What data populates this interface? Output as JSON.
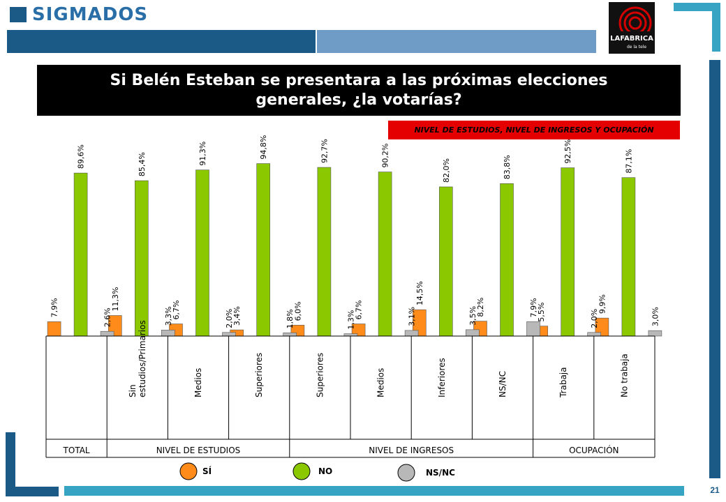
{
  "header": {
    "brand": "SIGMADOS",
    "logo_text": "LAFABRICA de la tele"
  },
  "question": "Si Belén Esteban se presentara a las próximas elecciones generales, ¿la votarías?",
  "subtitle": "Nivel de estudios, nivel de ingresos y ocupación",
  "page_number": "21",
  "colors": {
    "si": "#ff8c1a",
    "no": "#8cc800",
    "nsnc": "#b8b8b8",
    "navy": "#1b5a86",
    "teal": "#37a4c4",
    "light_blue": "#6e9cc6",
    "red": "#e40000"
  },
  "legend": {
    "si": "SÍ",
    "no": "NO",
    "nsnc": "NS/NC"
  },
  "chart_data": {
    "type": "bar",
    "categories": [
      "",
      "Sin estudios/Primarios",
      "Medios",
      "Superiores",
      "Superiores",
      "Medios",
      "Inferiores",
      "NS/NC",
      "Trabaja",
      "No trabaja"
    ],
    "category_lines": [
      [
        ""
      ],
      [
        "Sin",
        "estudios/Primarios"
      ],
      [
        "Medios"
      ],
      [
        "Superiores"
      ],
      [
        "Superiores"
      ],
      [
        "Medios"
      ],
      [
        "Inferiores"
      ],
      [
        "NS/NC"
      ],
      [
        "Trabaja"
      ],
      [
        "No trabaja"
      ]
    ],
    "groups": [
      {
        "label": "TOTAL",
        "members": [
          0
        ]
      },
      {
        "label": "NIVEL DE ESTUDIOS",
        "members": [
          1,
          2,
          3
        ]
      },
      {
        "label": "NIVEL DE INGRESOS",
        "members": [
          4,
          5,
          6,
          7
        ]
      },
      {
        "label": "OCUPACIÓN",
        "members": [
          8,
          9
        ]
      }
    ],
    "series": [
      {
        "name": "SÍ",
        "values": [
          7.9,
          11.3,
          6.7,
          3.4,
          6.0,
          6.7,
          14.5,
          8.2,
          5.5,
          9.9
        ],
        "labels": [
          "7,9%",
          "11,3%",
          "6,7%",
          "3,4%",
          "6,0%",
          "6,7%",
          "14,5%",
          "8,2%",
          "5,5%",
          "9,9%"
        ]
      },
      {
        "name": "NO",
        "values": [
          89.6,
          85.4,
          91.3,
          94.8,
          92.7,
          90.2,
          82.0,
          83.8,
          92.5,
          87.1
        ],
        "labels": [
          "89,6%",
          "85,4%",
          "91,3%",
          "94,8%",
          "92,7%",
          "90,2%",
          "82,0%",
          "83,8%",
          "92,5%",
          "87,1%"
        ]
      },
      {
        "name": "NS/NC",
        "values": [
          2.6,
          3.3,
          2.0,
          1.8,
          1.3,
          3.1,
          3.5,
          7.9,
          2.0,
          3.0
        ],
        "labels": [
          "2,6%",
          "3,3%",
          "2,0%",
          "1,8%",
          "1,3%",
          "3,1%",
          "3,5%",
          "7,9%",
          "2,0%",
          "3,0%"
        ]
      }
    ],
    "ylim": [
      0,
      100
    ],
    "grid": false,
    "legend_position": "bottom"
  }
}
